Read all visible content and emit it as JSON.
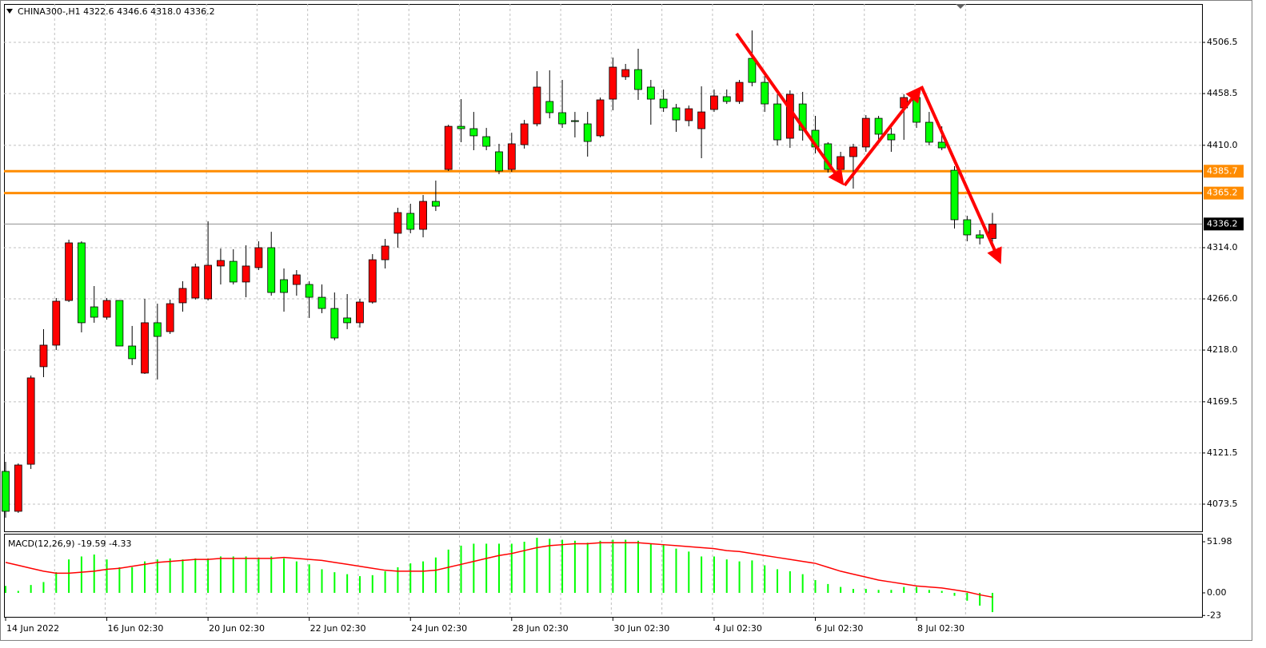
{
  "chart_data": [
    {
      "type": "candlestick",
      "title": "CHINA300-,H1  4322.6 4346.6 4318.0 4336.2",
      "categories": [
        "14 Jun 2022",
        null,
        null,
        null,
        null,
        null,
        null,
        null,
        "16 Jun 02:30",
        null,
        null,
        null,
        null,
        null,
        null,
        null,
        "20 Jun 02:30",
        null,
        null,
        null,
        null,
        null,
        null,
        null,
        "22 Jun 02:30",
        null,
        null,
        null,
        null,
        null,
        null,
        null,
        "24 Jun 02:30",
        null,
        null,
        null,
        null,
        null,
        null,
        null,
        "28 Jun 02:30",
        null,
        null,
        null,
        null,
        null,
        null,
        null,
        "30 Jun 02:30",
        null,
        null,
        null,
        null,
        null,
        null,
        null,
        "4 Jul 02:30",
        null,
        null,
        null,
        null,
        null,
        null,
        null,
        "6 Jul 02:30",
        null,
        null,
        null,
        null,
        null,
        null,
        null,
        "8 Jul 02:30",
        null,
        null,
        null,
        null,
        null,
        null
      ],
      "open": [
        4104.2,
        4066.8,
        4110.9,
        4202.4,
        4222.6,
        4264.5,
        4318.5,
        4258.5,
        4248.8,
        4264.5,
        4221.8,
        4196.4,
        4243.6,
        4235.3,
        4262.3,
        4266.8,
        4266.0,
        4296.8,
        4301.2,
        4281.8,
        4295.3,
        4314.0,
        4284.0,
        4279.5,
        4279.5,
        4267.5,
        4257.0,
        4248.1,
        4243.6,
        4263.0,
        4302.7,
        4327.5,
        4346.2,
        4331.2,
        4357.4,
        4387.4,
        4427.8,
        4425.6,
        4418.1,
        4403.9,
        4387.4,
        4410.6,
        4430.1,
        4451.1,
        4440.6,
        4433.1,
        4430.1,
        4418.9,
        4453.3,
        4474.3,
        4481.0,
        4464.6,
        4453.3,
        4445.1,
        4433.1,
        4425.6,
        4443.6,
        4455.6,
        4451.1,
        4491.5,
        4469.0,
        4448.8,
        4416.6,
        4448.8,
        4424.1,
        4411.4,
        4387.4,
        4399.4,
        4408.4,
        4435.3,
        4420.4,
        4445.1,
        4454.8,
        4431.6,
        4412.9,
        4386.6,
        4340.2,
        4326.0,
        4322.6
      ],
      "high": [
        4113.2,
        4111.7,
        4194.1,
        4237.6,
        4266.8,
        4321.5,
        4320.0,
        4278.0,
        4266.8,
        4264.5,
        4240.6,
        4266.0,
        4261.5,
        4265.3,
        4282.5,
        4299.0,
        4338.7,
        4313.2,
        4312.5,
        4316.2,
        4320.0,
        4328.9,
        4294.5,
        4293.0,
        4282.5,
        4279.5,
        4272.0,
        4270.5,
        4266.0,
        4308.0,
        4322.2,
        4351.4,
        4355.2,
        4363.4,
        4376.9,
        4429.3,
        4453.3,
        4441.3,
        4426.3,
        4411.4,
        4421.8,
        4433.8,
        4479.5,
        4480.3,
        4471.3,
        4441.3,
        4441.3,
        4454.8,
        4492.3,
        4486.3,
        4500.5,
        4471.3,
        4462.3,
        4448.8,
        4447.3,
        4465.3,
        4462.3,
        4462.3,
        4471.3,
        4517.7,
        4475.0,
        4457.8,
        4461.5,
        4460.1,
        4437.6,
        4412.9,
        4403.9,
        4411.4,
        4438.3,
        4437.6,
        4426.3,
        4457.8,
        4462.3,
        4441.3,
        4427.8,
        4390.4,
        4343.9,
        4330.5,
        4346.6
      ],
      "low": [
        4060.8,
        4065.3,
        4106.5,
        4192.6,
        4218.1,
        4263.0,
        4234.6,
        4243.6,
        4246.5,
        4221.8,
        4203.9,
        4195.6,
        4190.4,
        4233.1,
        4254.0,
        4265.3,
        4264.5,
        4279.5,
        4279.5,
        4267.5,
        4293.0,
        4269.0,
        4254.0,
        4269.0,
        4248.1,
        4252.5,
        4227.1,
        4237.6,
        4239.1,
        4261.5,
        4294.5,
        4314.0,
        4327.5,
        4323.7,
        4348.4,
        4385.9,
        4412.9,
        4405.4,
        4405.4,
        4382.9,
        4385.1,
        4406.9,
        4427.8,
        4435.3,
        4426.3,
        4417.4,
        4399.4,
        4417.4,
        4442.8,
        4471.3,
        4452.6,
        4429.3,
        4441.3,
        4422.6,
        4427.8,
        4397.9,
        4441.3,
        4448.8,
        4448.8,
        4465.3,
        4441.3,
        4409.9,
        4407.6,
        4414.4,
        4402.4,
        4384.4,
        4375.4,
        4369.4,
        4403.9,
        4414.4,
        4403.9,
        4415.1,
        4426.3,
        4409.9,
        4405.4,
        4332.0,
        4320.0,
        4317.0,
        4318.0
      ],
      "close": [
        4066.8,
        4110.2,
        4191.9,
        4222.6,
        4263.8,
        4318.5,
        4243.6,
        4248.8,
        4264.5,
        4221.8,
        4209.9,
        4243.6,
        4230.8,
        4261.5,
        4275.8,
        4296.0,
        4297.5,
        4302.0,
        4281.8,
        4296.8,
        4314.0,
        4272.0,
        4272.0,
        4288.5,
        4267.5,
        4257.0,
        4229.3,
        4243.6,
        4263.0,
        4302.7,
        4315.5,
        4346.9,
        4331.2,
        4357.4,
        4352.9,
        4427.8,
        4425.6,
        4418.9,
        4409.1,
        4385.9,
        4411.4,
        4430.1,
        4464.6,
        4440.6,
        4430.1,
        4432.3,
        4413.6,
        4452.6,
        4483.3,
        4481.0,
        4462.3,
        4453.3,
        4445.1,
        4433.8,
        4444.3,
        4441.3,
        4456.3,
        4451.1,
        4469.0,
        4469.0,
        4448.8,
        4415.1,
        4457.8,
        4424.1,
        4408.4,
        4387.4,
        4399.4,
        4408.4,
        4435.3,
        4420.4,
        4415.1,
        4454.8,
        4431.6,
        4412.9,
        4407.6,
        4340.2,
        4326.0,
        4323.0,
        4336.2
      ],
      "up_color": "#ff0000",
      "down_color": "#00ff00",
      "ylim": [
        4048,
        4542.5
      ],
      "yticks": [
        4073.5,
        4121.5,
        4169.5,
        {
          "value": 4218,
          "label": "4218.0"
        },
        {
          "value": 4266,
          "label": "4266.0"
        },
        {
          "value": 4314,
          "label": "4314.0"
        },
        {
          "value": 4410,
          "label": "4410.0"
        },
        4458.5,
        4506.5
      ],
      "grid": true,
      "hlines": [
        {
          "value": 4385.7,
          "color": "#ff8c00"
        },
        {
          "value": 4365.2,
          "color": "#ff8c00"
        }
      ],
      "last_price": {
        "value": 4336.2,
        "color": "#000000"
      }
    },
    {
      "type": "macd",
      "title": "MACD(12,26,9) -19.59 -4.33",
      "histogram": {
        "color": "#00ff00",
        "values": [
          7,
          2,
          8,
          11,
          21,
          34,
          37,
          39,
          34,
          26,
          26,
          32,
          34,
          35,
          34,
          35,
          35,
          37,
          37,
          37,
          36,
          37,
          35,
          32,
          29,
          24,
          21,
          19,
          17,
          18,
          22,
          26,
          30,
          32,
          36,
          44,
          48,
          50,
          50,
          50,
          50,
          52,
          56,
          55,
          54,
          53,
          51,
          53,
          54,
          54,
          53,
          50,
          49,
          45,
          42,
          37,
          37,
          34,
          32,
          33,
          28,
          24,
          22,
          19,
          13,
          9,
          6,
          4,
          4,
          3,
          3,
          6,
          6,
          3,
          2,
          -3,
          -8,
          -13,
          -19.59
        ]
      },
      "signal": {
        "color": "#ff0000",
        "values": [
          31,
          28,
          25,
          22,
          20,
          20,
          21,
          22,
          24,
          25,
          27,
          29,
          31,
          32,
          33,
          34,
          34,
          35,
          35,
          35,
          35,
          35,
          36,
          35,
          34,
          33,
          31,
          29,
          27,
          25,
          23,
          22,
          22,
          22,
          23,
          26,
          29,
          32,
          35,
          38,
          40,
          43,
          46,
          48,
          49,
          50,
          50,
          51,
          51,
          51,
          51,
          50,
          49,
          48,
          47,
          46,
          45,
          43,
          42,
          40,
          38,
          36,
          34,
          32,
          30,
          26,
          22,
          19,
          16,
          13,
          11,
          9,
          7,
          6,
          5,
          3,
          1,
          -2,
          -4.33
        ]
      },
      "ylim": [
        -24.4,
        58.5
      ],
      "yticks": [
        -23,
        {
          "value": 0,
          "label": "0.00"
        },
        51.98
      ]
    }
  ]
}
